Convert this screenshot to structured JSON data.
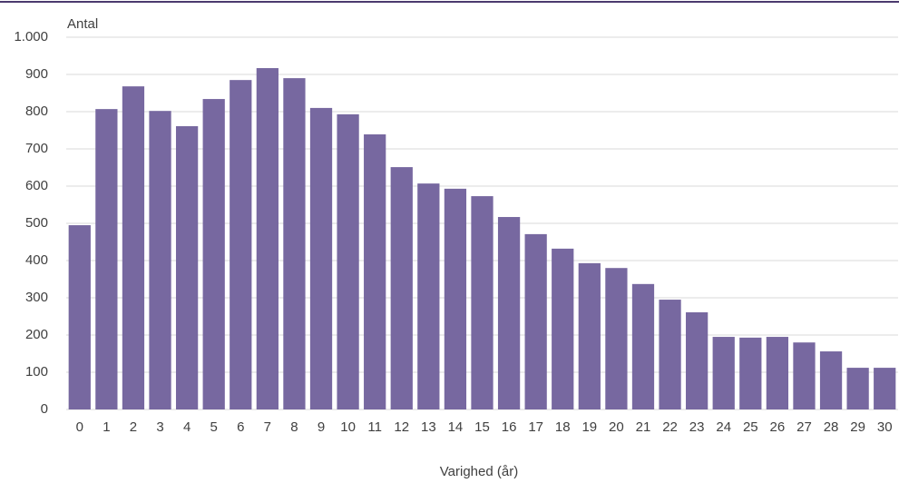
{
  "chart_data": {
    "type": "bar",
    "y_axis_label": "Antal",
    "x_axis_label": "Varighed (år)",
    "categories": [
      "0",
      "1",
      "2",
      "3",
      "4",
      "5",
      "6",
      "7",
      "8",
      "9",
      "10",
      "11",
      "12",
      "13",
      "14",
      "15",
      "16",
      "17",
      "18",
      "19",
      "20",
      "21",
      "22",
      "23",
      "24",
      "25",
      "26",
      "27",
      "28",
      "29",
      "30"
    ],
    "values": [
      495,
      807,
      868,
      802,
      761,
      834,
      885,
      917,
      890,
      810,
      793,
      739,
      651,
      607,
      593,
      573,
      517,
      471,
      432,
      393,
      380,
      337,
      295,
      261,
      195,
      193,
      195,
      180,
      156,
      112,
      112
    ],
    "color": "#7768a0",
    "ylim": [
      0,
      1000
    ],
    "yticks": [
      0,
      100,
      200,
      300,
      400,
      500,
      600,
      700,
      800,
      900,
      {
        "value": 1000,
        "label": "1.000"
      }
    ],
    "grid": true
  }
}
